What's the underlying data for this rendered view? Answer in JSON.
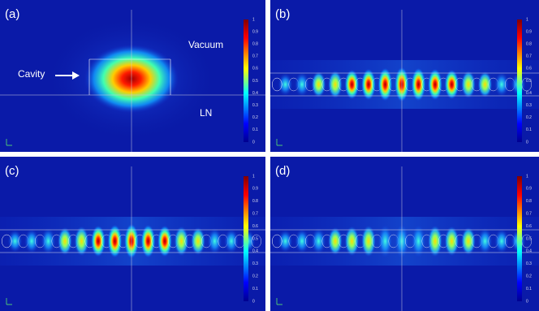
{
  "panels": [
    {
      "label": "(a)"
    },
    {
      "label": "(b)"
    },
    {
      "label": "(c)"
    },
    {
      "label": "(d)"
    }
  ],
  "annotations": {
    "vacuum": "Vacuum",
    "cavity": "Cavity",
    "ln": "LN"
  },
  "colorbar": {
    "ticks": [
      1,
      0.9,
      0.8,
      0.7,
      0.6,
      0.5,
      0.4,
      0.3,
      0.2,
      0.1,
      0
    ]
  }
}
